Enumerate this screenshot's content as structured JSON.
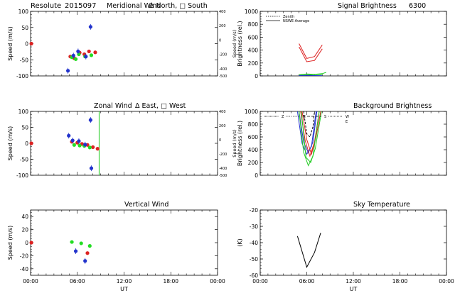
{
  "header": {
    "site": "Resolute",
    "date": "2015097"
  },
  "chart_data": [
    {
      "id": "meridional",
      "type": "scatter",
      "title": "Meridional Wind",
      "legend": [
        "Δ North,",
        "□ South"
      ],
      "ylabel": "Speed (m/s)",
      "ylabel_right": "Speed (m/s)",
      "xticks": [
        "",
        "",
        "",
        "",
        ""
      ],
      "ylim": [
        -100,
        100
      ],
      "yticks": [
        -100,
        -50,
        0,
        50,
        100
      ],
      "ylim_right": [
        -500,
        400
      ],
      "yticks_right": [
        -500,
        -400,
        -200,
        0,
        200,
        400
      ],
      "xlim": [
        0,
        24
      ],
      "series": [
        {
          "color": "#dd2222",
          "points": [
            [
              0.1,
              0
            ],
            [
              5.1,
              -40
            ],
            [
              5.6,
              -45
            ],
            [
              6.3,
              -28
            ],
            [
              6.9,
              -33
            ],
            [
              7.5,
              -24
            ],
            [
              8.3,
              -27
            ]
          ]
        },
        {
          "color": "#22dd22",
          "points": [
            [
              5.3,
              -42
            ],
            [
              5.8,
              -48
            ],
            [
              6.2,
              -33
            ],
            [
              7.0,
              -40
            ],
            [
              7.8,
              -36
            ]
          ]
        },
        {
          "color": "#2233cc",
          "points": [
            [
              4.8,
              -84
            ],
            [
              5.5,
              -37
            ],
            [
              6.1,
              -24
            ],
            [
              7.1,
              -40
            ],
            [
              7.7,
              52
            ]
          ]
        }
      ]
    },
    {
      "id": "zonal",
      "type": "scatter",
      "title": "Zonal Wind",
      "legend": [
        "Δ East,",
        "□ West"
      ],
      "ylabel": "Speed (m/s)",
      "ylabel_right": "Speed (m/s)",
      "xticks": [
        "",
        "",
        "",
        "",
        ""
      ],
      "ylim": [
        -100,
        100
      ],
      "yticks": [
        -100,
        -50,
        0,
        50,
        100
      ],
      "ylim_right": [
        -500,
        400
      ],
      "yticks_right": [
        -500,
        -400,
        -200,
        0,
        200,
        400
      ],
      "xlim": [
        0,
        24
      ],
      "vline": {
        "x": 8.8,
        "color": "#22cc22"
      },
      "series": [
        {
          "color": "#dd2222",
          "points": [
            [
              0.1,
              0
            ],
            [
              5.3,
              5
            ],
            [
              6.0,
              2
            ],
            [
              6.6,
              -2
            ],
            [
              7.3,
              -5
            ],
            [
              8.0,
              -12
            ],
            [
              8.6,
              -17
            ]
          ]
        },
        {
          "color": "#22dd22",
          "points": [
            [
              5.6,
              -5
            ],
            [
              6.3,
              -7
            ],
            [
              6.9,
              -8
            ],
            [
              7.6,
              -13
            ]
          ]
        },
        {
          "color": "#2233cc",
          "points": [
            [
              4.9,
              24
            ],
            [
              5.4,
              9
            ],
            [
              6.2,
              7
            ],
            [
              7.0,
              -4
            ],
            [
              7.7,
              73
            ],
            [
              7.8,
              -78
            ]
          ]
        }
      ]
    },
    {
      "id": "vertical",
      "type": "scatter",
      "title": "Vertical Wind",
      "ylabel": "Speed (m/s)",
      "xticks": [
        "00:00",
        "06:00",
        "12:00",
        "18:00",
        "00:00"
      ],
      "xlabel": "UT",
      "ylim": [
        -50,
        50
      ],
      "yticks": [
        -40,
        -20,
        0,
        20,
        40
      ],
      "xlim": [
        0,
        24
      ],
      "series": [
        {
          "color": "#dd2222",
          "points": [
            [
              0.1,
              0
            ],
            [
              7.3,
              -16
            ]
          ]
        },
        {
          "color": "#22dd22",
          "points": [
            [
              5.3,
              1
            ],
            [
              6.5,
              -1
            ],
            [
              7.6,
              -5
            ]
          ]
        },
        {
          "color": "#2233cc",
          "points": [
            [
              5.8,
              -13
            ],
            [
              7.0,
              -28
            ]
          ]
        }
      ]
    },
    {
      "id": "signal",
      "type": "line",
      "title": "Signal Brightness",
      "title2": "6300",
      "legend": [
        "Zenith",
        "NSWE Average"
      ],
      "ylabel": "Brightness (rel.)",
      "xticks": [
        "",
        "",
        "",
        "",
        ""
      ],
      "ylim": [
        0,
        1000
      ],
      "yticks": [
        0,
        200,
        400,
        600,
        800,
        1000
      ],
      "xlim": [
        0,
        24
      ],
      "series": [
        {
          "color": "#dd2222",
          "points": [
            [
              5.0,
              500
            ],
            [
              6.0,
              270
            ],
            [
              7.0,
              300
            ],
            [
              8.0,
              480
            ]
          ]
        },
        {
          "color": "#dd2222",
          "points": [
            [
              5.0,
              450
            ],
            [
              6.0,
              220
            ],
            [
              7.0,
              240
            ],
            [
              8.0,
              420
            ]
          ]
        },
        {
          "color": "#22cc22",
          "points": [
            [
              5.0,
              20
            ],
            [
              6.0,
              30
            ],
            [
              7.0,
              25
            ],
            [
              8.0,
              35
            ],
            [
              8.5,
              55
            ]
          ]
        },
        {
          "color": "#22cc22",
          "points": [
            [
              5.0,
              10
            ],
            [
              6.0,
              15
            ],
            [
              7.0,
              20
            ],
            [
              8.0,
              22
            ]
          ]
        },
        {
          "color": "#2233cc",
          "points": [
            [
              5.0,
              5
            ],
            [
              6.0,
              8
            ],
            [
              7.0,
              6
            ],
            [
              8.0,
              4
            ]
          ]
        }
      ]
    },
    {
      "id": "background",
      "type": "line",
      "title": "Background Brightness",
      "legend": [
        "Z",
        "N",
        "S",
        "W",
        "E"
      ],
      "ylabel": "Brightness (rel.)",
      "xticks": [
        "",
        "",
        "",
        "",
        ""
      ],
      "ylim": [
        0,
        1000
      ],
      "yticks": [
        0,
        200,
        400,
        600,
        800,
        1000
      ],
      "xlim": [
        0,
        24
      ],
      "series": [
        {
          "color": "#2233cc",
          "points": [
            [
              4.8,
              1000
            ],
            [
              5.4,
              500
            ],
            [
              6.0,
              330
            ],
            [
              6.6,
              450
            ],
            [
              7.2,
              1000
            ]
          ]
        },
        {
          "color": "#2233cc",
          "points": [
            [
              5.0,
              1000
            ],
            [
              5.6,
              520
            ],
            [
              6.2,
              350
            ],
            [
              6.8,
              520
            ],
            [
              7.3,
              1000
            ]
          ]
        },
        {
          "color": "#dd2222",
          "points": [
            [
              5.2,
              1000
            ],
            [
              5.8,
              540
            ],
            [
              6.4,
              300
            ],
            [
              7.0,
              520
            ],
            [
              7.6,
              1000
            ]
          ]
        },
        {
          "color": "#dd2222",
          "points": [
            [
              5.4,
              1000
            ],
            [
              6.0,
              560
            ],
            [
              6.6,
              330
            ],
            [
              7.2,
              600
            ],
            [
              7.8,
              1000
            ]
          ]
        },
        {
          "color": "#22cc22",
          "points": [
            [
              5.0,
              1000
            ],
            [
              5.6,
              360
            ],
            [
              6.2,
              150
            ],
            [
              6.8,
              300
            ],
            [
              7.6,
              1000
            ]
          ]
        },
        {
          "color": "#22cc22",
          "points": [
            [
              5.3,
              1000
            ],
            [
              5.9,
              280
            ],
            [
              6.5,
              200
            ],
            [
              7.1,
              420
            ],
            [
              7.9,
              1000
            ]
          ]
        },
        {
          "color": "#000000",
          "dashed": true,
          "points": [
            [
              5.6,
              1000
            ],
            [
              6.0,
              650
            ],
            [
              6.4,
              600
            ],
            [
              6.8,
              760
            ],
            [
              7.0,
              1000
            ]
          ]
        }
      ]
    },
    {
      "id": "skytemp",
      "type": "line",
      "title": "Sky Temperature",
      "ylabel": "(K)",
      "xticks": [
        "00:00",
        "06:00",
        "12:00",
        "18:00",
        "00:00"
      ],
      "xlabel": "UT",
      "ylim": [
        -60,
        -20
      ],
      "yticks": [
        -60,
        -50,
        -40,
        -30,
        -20
      ],
      "xlim": [
        0,
        24
      ],
      "series": [
        {
          "color": "#000000",
          "points": [
            [
              4.8,
              -36
            ],
            [
              6.0,
              -55
            ],
            [
              7.0,
              -46
            ],
            [
              7.8,
              -34
            ]
          ]
        }
      ]
    }
  ]
}
